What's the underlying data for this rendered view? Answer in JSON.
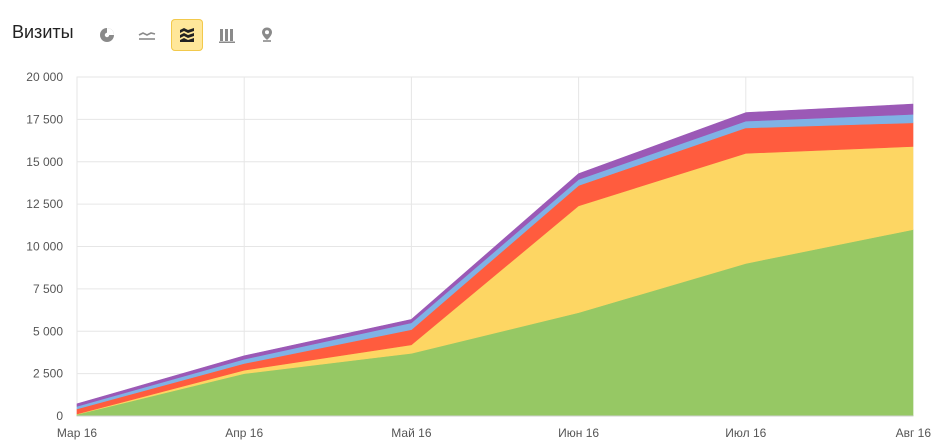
{
  "header": {
    "title": "Визиты",
    "toolbar": [
      {
        "name": "pie-chart-icon",
        "active": false
      },
      {
        "name": "line-chart-icon",
        "active": false
      },
      {
        "name": "area-chart-icon",
        "active": true
      },
      {
        "name": "bar-chart-icon",
        "active": false
      },
      {
        "name": "map-pin-icon",
        "active": false
      }
    ]
  },
  "colors": {
    "active_bg": "#ffe79a",
    "grid": "#e6e6e6"
  },
  "chart_data": {
    "type": "area",
    "stacked": true,
    "categories": [
      "Мар 16",
      "Апр 16",
      "Май 16",
      "Июн 16",
      "Июл 16",
      "Авг 16"
    ],
    "ylim": [
      0,
      20000
    ],
    "yticks": [
      0,
      2500,
      5000,
      7500,
      10000,
      12500,
      15000,
      17500,
      20000
    ],
    "ytick_labels": [
      "0",
      "2 500",
      "5 000",
      "7 500",
      "10 000",
      "12 500",
      "15 000",
      "17 500",
      "20 000"
    ],
    "grid": true,
    "series": [
      {
        "color": "#96c864",
        "values": [
          100,
          2500,
          3700,
          6100,
          9000,
          11000
        ]
      },
      {
        "color": "#fdd663",
        "values": [
          20,
          200,
          500,
          6300,
          6500,
          4900
        ]
      },
      {
        "color": "#ff5c3e",
        "values": [
          300,
          400,
          900,
          1200,
          1500,
          1400
        ]
      },
      {
        "color": "#7fb2e5",
        "values": [
          150,
          250,
          400,
          350,
          400,
          500
        ]
      },
      {
        "color": "#9b59b6",
        "values": [
          150,
          200,
          200,
          350,
          500,
          600
        ]
      }
    ]
  }
}
